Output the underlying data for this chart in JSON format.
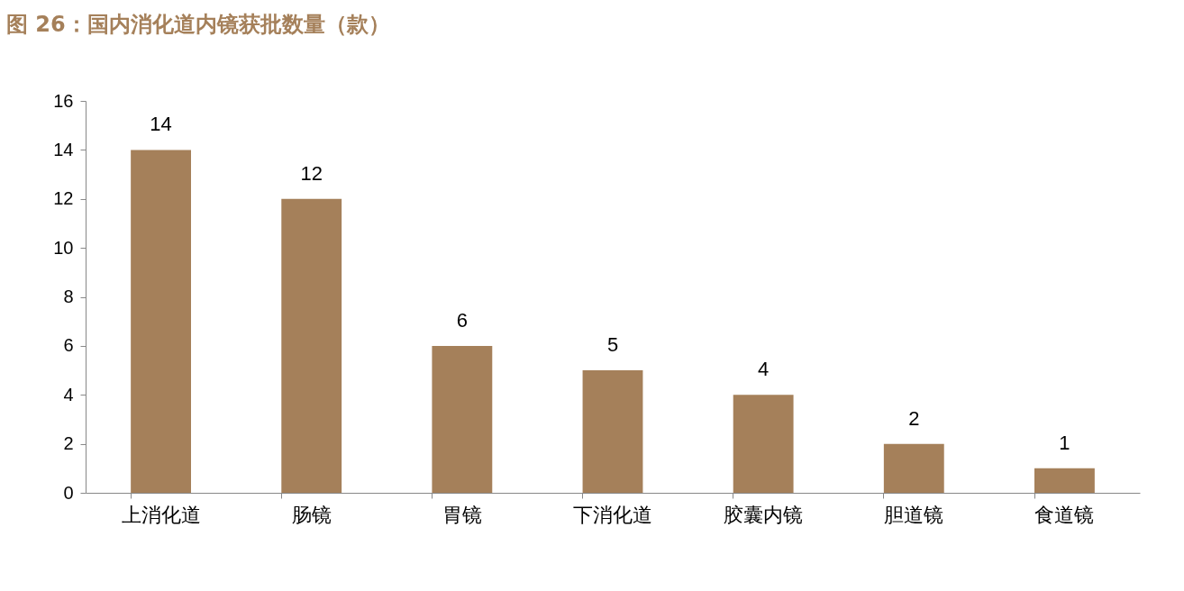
{
  "chart_data": {
    "type": "bar",
    "title": "图 26：国内消化道内镜获批数量（款）",
    "categories": [
      "上消化道",
      "肠镜",
      "胃镜",
      "下消化道",
      "胶囊内镜",
      "胆道镜",
      "食道镜"
    ],
    "values": [
      14,
      12,
      6,
      5,
      4,
      2,
      1
    ],
    "color": "#a5805a",
    "ylim": [
      0,
      16
    ],
    "yticks": [
      0,
      2,
      4,
      6,
      8,
      10,
      12,
      14,
      16
    ],
    "grid": false,
    "data_labels": true
  }
}
